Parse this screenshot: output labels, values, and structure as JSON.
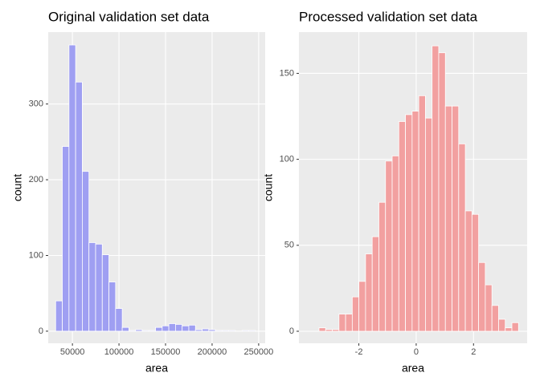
{
  "chart_data": [
    {
      "type": "histogram",
      "title": "Original validation set data",
      "x_label": "area",
      "y_label": "count",
      "color": "#9f9ff2",
      "bins": [
        32000,
        39150,
        46300,
        53450,
        60600,
        67750,
        74900,
        82050,
        89200,
        96350,
        103500,
        110650,
        117800,
        124950,
        132100,
        139250,
        146400,
        153550,
        160700,
        167850,
        175000,
        182150,
        189300,
        196450,
        203600,
        210750,
        217900,
        225050,
        232200,
        239350,
        246500
      ],
      "values": [
        40,
        244,
        378,
        329,
        211,
        117,
        115,
        101,
        65,
        30,
        5,
        1,
        2,
        1,
        1,
        5,
        7,
        10,
        9,
        7,
        8,
        2,
        3,
        2,
        1,
        1,
        1,
        0,
        1,
        1
      ],
      "xlim": [
        24000,
        257000
      ],
      "xticks": [
        50000,
        100000,
        150000,
        200000,
        250000
      ],
      "ylim": [
        -16,
        395
      ],
      "yticks": [
        0,
        100,
        200,
        300
      ],
      "grid": true
    },
    {
      "type": "histogram",
      "title": "Processed validation set data",
      "x_label": "area",
      "y_label": "count",
      "color": "#f2a0a0",
      "bins": [
        -3.39,
        -3.158,
        -2.926,
        -2.694,
        -2.462,
        -2.23,
        -1.998,
        -1.766,
        -1.534,
        -1.302,
        -1.07,
        -0.838,
        -0.606,
        -0.374,
        -0.142,
        0.09,
        0.322,
        0.554,
        0.786,
        1.018,
        1.25,
        1.482,
        1.714,
        1.946,
        2.178,
        2.41,
        2.642,
        2.874,
        3.106,
        3.338,
        3.57
      ],
      "values": [
        2,
        1,
        1,
        10,
        10,
        20,
        29,
        45,
        55,
        75,
        99,
        102,
        122,
        126,
        128,
        137,
        124,
        166,
        162,
        131,
        131,
        109,
        70,
        68,
        40,
        27,
        15,
        7,
        2,
        5
      ],
      "xlim": [
        -4.09,
        3.87
      ],
      "xticks": [
        -2,
        0,
        2
      ],
      "ylim": [
        -7,
        174
      ],
      "yticks": [
        0,
        50,
        100,
        150
      ],
      "grid": true
    }
  ]
}
